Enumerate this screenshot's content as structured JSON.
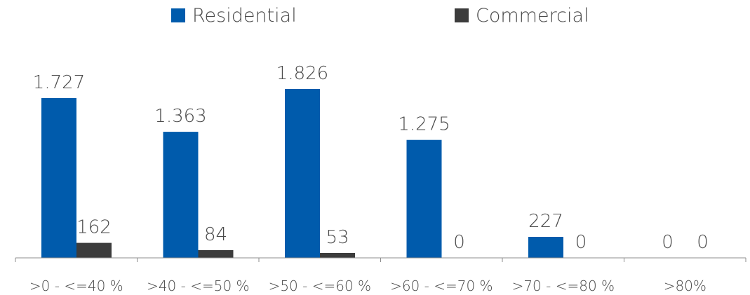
{
  "chart_data": {
    "type": "bar",
    "categories": [
      ">0 - <=40 %",
      ">40 - <=50 %",
      ">50 - <=60 %",
      ">60 - <=70 %",
      ">70 - <=80 %",
      ">80%"
    ],
    "series": [
      {
        "name": "Residential",
        "values": [
          1727,
          1363,
          1826,
          1275,
          227,
          0
        ],
        "labels": [
          "1.727",
          "1.363",
          "1.826",
          "1.275",
          "227",
          "0"
        ],
        "color": "#005BAC"
      },
      {
        "name": "Commercial",
        "values": [
          162,
          84,
          53,
          0,
          0,
          0
        ],
        "labels": [
          "162",
          "84",
          "53",
          "0",
          "0",
          "0"
        ],
        "color": "#3C3C3C"
      }
    ],
    "ylim": [
      0,
      2000
    ],
    "grid": false,
    "legend_position": "top-center",
    "data_labels": true,
    "axis_color": "#8C8C8C",
    "text_color": "#4A4A4A"
  }
}
